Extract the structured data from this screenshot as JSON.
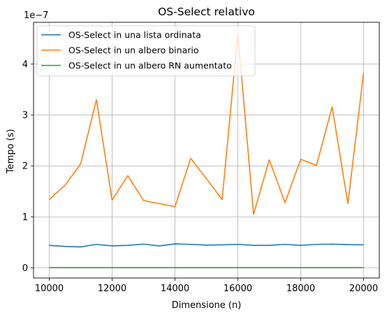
{
  "chart_data": {
    "type": "line",
    "title": "OS-Select relativo",
    "xlabel": "Dimensione (n)",
    "ylabel": "Tempo (s)",
    "y_scale_label": "1e−7",
    "xlim": [
      9500,
      20500
    ],
    "ylim": [
      -0.2,
      4.82
    ],
    "y_multiplier": 1e-07,
    "x_ticks": [
      10000,
      12000,
      14000,
      16000,
      18000,
      20000
    ],
    "y_ticks": [
      0,
      1,
      2,
      3,
      4
    ],
    "grid": true,
    "legend_position": "top-left",
    "x": [
      10000,
      10500,
      11000,
      11500,
      12000,
      12500,
      13000,
      13500,
      14000,
      14500,
      15000,
      15500,
      16000,
      16500,
      17000,
      17500,
      18000,
      18500,
      19000,
      19500,
      20000
    ],
    "series": [
      {
        "name": "OS-Select in una lista ordinata",
        "color": "#1f77b4",
        "values": [
          0.44,
          0.42,
          0.41,
          0.46,
          0.43,
          0.44,
          0.465,
          0.43,
          0.47,
          0.46,
          0.445,
          0.45,
          0.46,
          0.44,
          0.44,
          0.46,
          0.44,
          0.46,
          0.465,
          0.455,
          0.45
        ]
      },
      {
        "name": "OS-Select in un albero binario",
        "color": "#ff7f0e",
        "values": [
          1.34,
          1.62,
          2.04,
          3.3,
          1.33,
          1.81,
          1.32,
          1.26,
          1.2,
          2.15,
          1.75,
          1.34,
          4.6,
          1.05,
          2.12,
          1.28,
          2.13,
          2.01,
          3.16,
          1.26,
          3.83
        ]
      },
      {
        "name": "OS-Select in un albero RN aumentato",
        "color": "#2ca02c",
        "values": [
          0.003,
          0.003,
          0.003,
          0.003,
          0.003,
          0.003,
          0.003,
          0.003,
          0.003,
          0.003,
          0.003,
          0.003,
          0.003,
          0.003,
          0.003,
          0.003,
          0.003,
          0.003,
          0.003,
          0.003,
          0.003
        ]
      }
    ]
  }
}
